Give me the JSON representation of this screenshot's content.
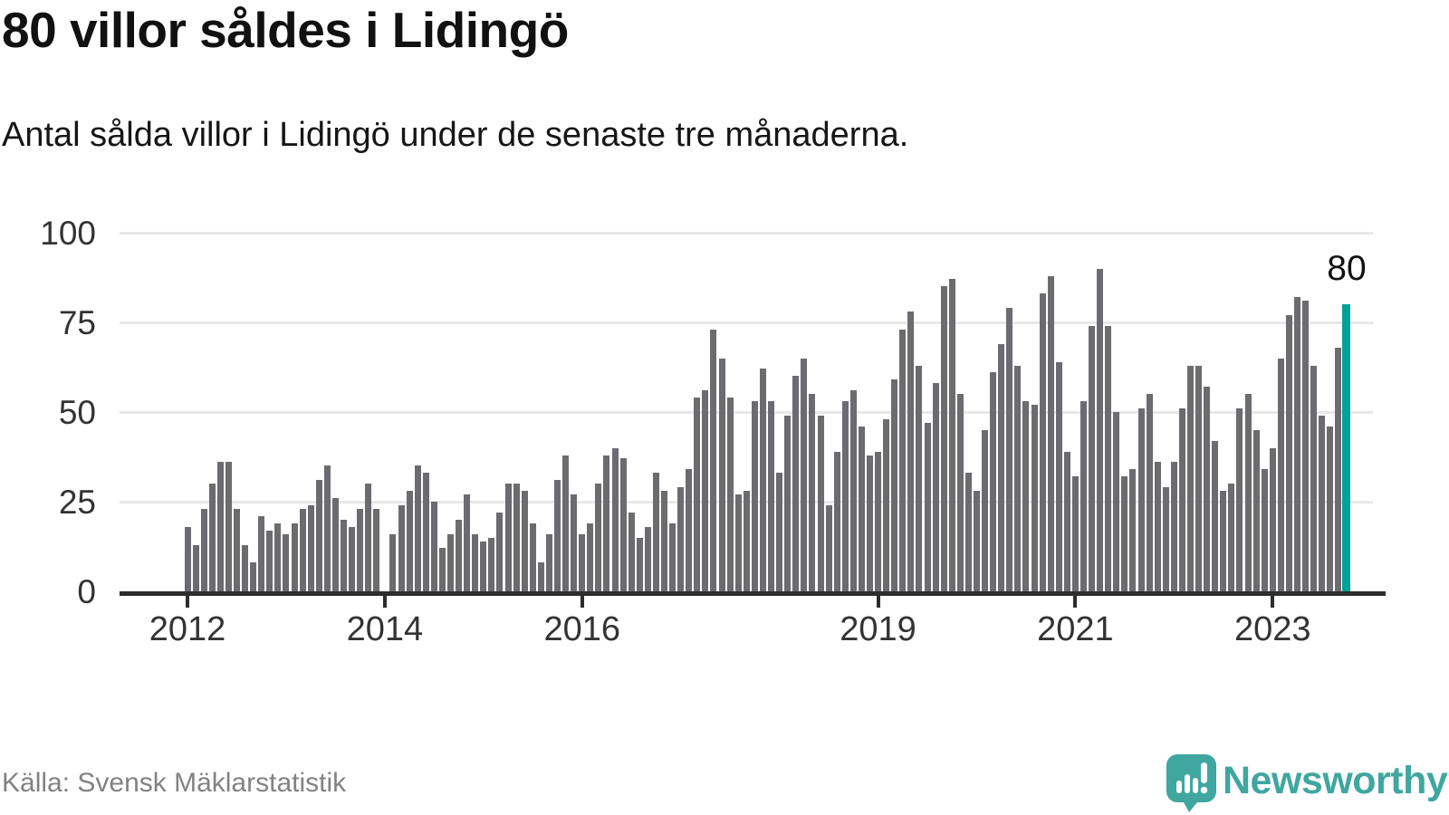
{
  "title": "80 villor såldes i Lidingö",
  "subtitle": "Antal sålda villor i Lidingö under de senaste tre månaderna.",
  "source": {
    "label": "Källa: Svensk Mäklarstatistik"
  },
  "brand": {
    "name": "Newsworthy"
  },
  "colors": {
    "bar": "#6b6b70",
    "highlight": "#00a197",
    "logo_teal": "#3fa79f",
    "axis": "#2d2d2d",
    "gridline": "#e8e8e8",
    "text": "#111111",
    "tick_text": "#333333",
    "source_text": "#828282"
  },
  "chart_data": {
    "type": "bar",
    "title": "80 villor såldes i Lidingö",
    "subtitle": "Antal sålda villor i Lidingö under de senaste tre månaderna.",
    "unit": "sålda villor (rullande 3 månader)",
    "x_start": "2012-01",
    "x_end": "2023-10",
    "frequency": "monthly",
    "ylim": [
      0,
      100
    ],
    "yticks": [
      0,
      25,
      50,
      75,
      100
    ],
    "grid": "horizontal",
    "xticks": [
      {
        "label": "2012",
        "month_index": 0
      },
      {
        "label": "2014",
        "month_index": 24
      },
      {
        "label": "2016",
        "month_index": 48
      },
      {
        "label": "2019",
        "month_index": 84
      },
      {
        "label": "2021",
        "month_index": 108
      },
      {
        "label": "2023",
        "month_index": 132
      }
    ],
    "values": [
      18,
      13,
      23,
      30,
      36,
      36,
      23,
      13,
      8,
      21,
      17,
      19,
      16,
      19,
      23,
      24,
      31,
      35,
      26,
      20,
      18,
      23,
      30,
      23,
      0,
      16,
      24,
      28,
      35,
      33,
      25,
      12,
      16,
      20,
      27,
      16,
      14,
      15,
      22,
      30,
      30,
      28,
      19,
      8,
      16,
      31,
      38,
      27,
      16,
      19,
      30,
      38,
      40,
      37,
      22,
      15,
      18,
      33,
      28,
      19,
      29,
      34,
      54,
      56,
      73,
      65,
      54,
      27,
      28,
      53,
      62,
      53,
      33,
      49,
      60,
      65,
      55,
      49,
      24,
      39,
      53,
      56,
      46,
      38,
      39,
      48,
      59,
      73,
      78,
      63,
      47,
      58,
      85,
      87,
      55,
      33,
      28,
      45,
      61,
      69,
      79,
      63,
      53,
      52,
      83,
      88,
      64,
      39,
      32,
      53,
      74,
      90,
      74,
      50,
      32,
      34,
      51,
      55,
      36,
      29,
      36,
      51,
      63,
      63,
      57,
      42,
      28,
      30,
      51,
      55,
      45,
      34,
      40,
      65,
      77,
      82,
      81,
      63,
      49,
      46,
      68,
      80
    ],
    "highlight_index": 141,
    "highlight_value_label": "80",
    "legend": "none"
  }
}
